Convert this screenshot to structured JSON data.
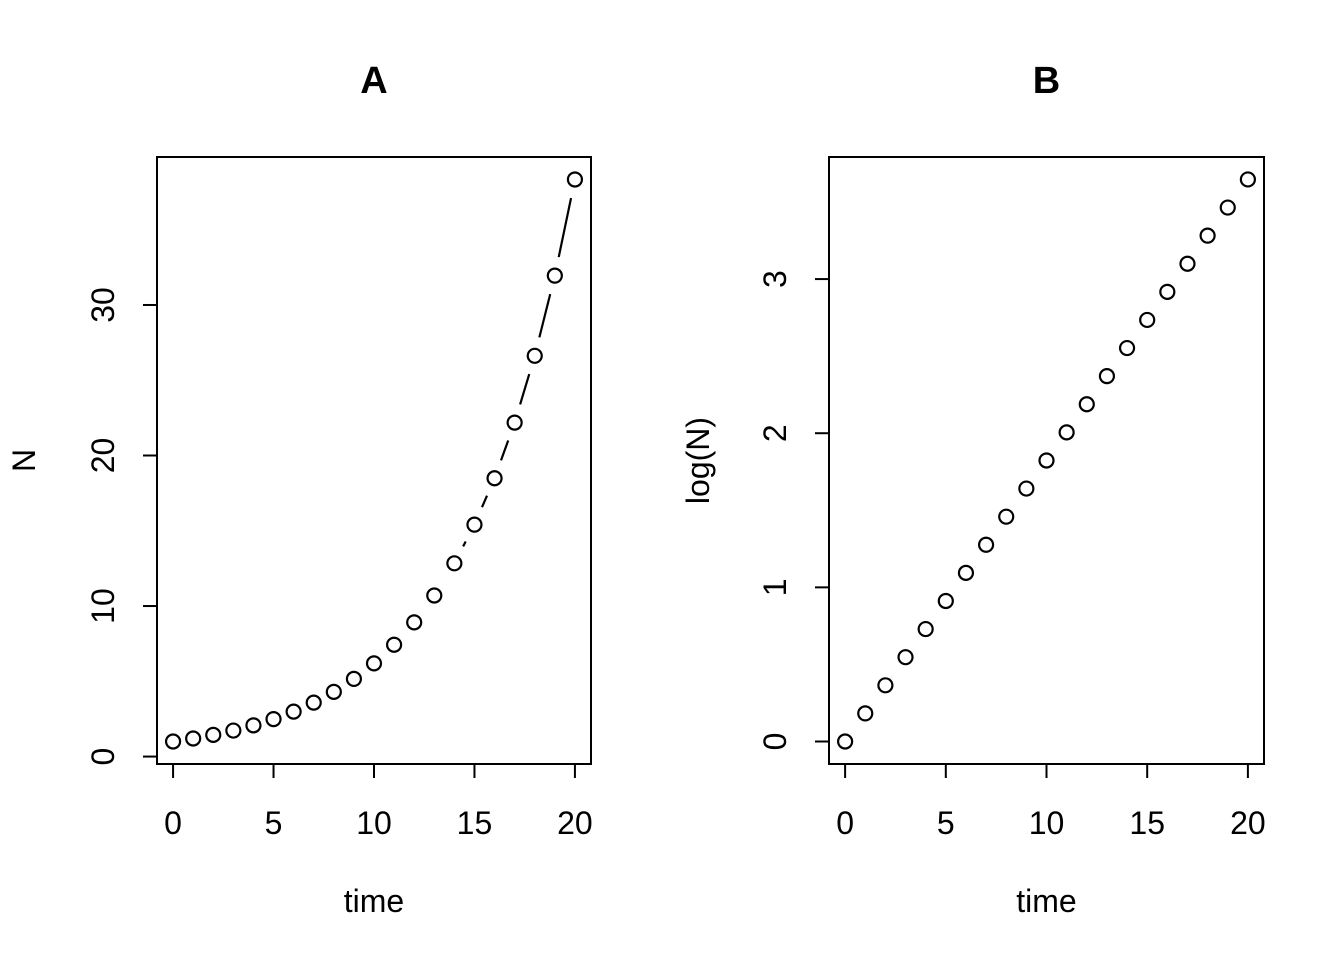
{
  "figure": {
    "background": "#ffffff",
    "stroke_color": "#000000",
    "marker": "open-circle",
    "panel_count": 2
  },
  "chart_data": [
    {
      "panel": "A",
      "type": "scatter",
      "title": "A",
      "xlabel": "time",
      "ylabel": "N",
      "marker": "open-circle",
      "connect": "segments",
      "grid": false,
      "legend": null,
      "x": [
        0,
        1,
        2,
        3,
        4,
        5,
        6,
        7,
        8,
        9,
        10,
        11,
        12,
        13,
        14,
        15,
        16,
        17,
        18,
        19,
        20
      ],
      "y": [
        1,
        1.2,
        1.44,
        1.728,
        2.0736,
        2.4883,
        2.986,
        3.5832,
        4.2998,
        5.1598,
        6.1917,
        7.4301,
        8.9161,
        10.6993,
        12.8392,
        15.407,
        18.4884,
        22.1861,
        26.6233,
        31.948,
        38.3376
      ],
      "xticks": [
        0,
        5,
        10,
        15,
        20
      ],
      "yticks": [
        0,
        10,
        20,
        30
      ],
      "xlim": [
        -0.8,
        20.8
      ],
      "ylim": [
        -0.494,
        39.831
      ]
    },
    {
      "panel": "B",
      "type": "scatter",
      "title": "B",
      "xlabel": "time",
      "ylabel": "log(N)",
      "marker": "open-circle",
      "connect": "none",
      "grid": false,
      "legend": null,
      "x": [
        0,
        1,
        2,
        3,
        4,
        5,
        6,
        7,
        8,
        9,
        10,
        11,
        12,
        13,
        14,
        15,
        16,
        17,
        18,
        19,
        20
      ],
      "y": [
        0,
        0.1823,
        0.3646,
        0.547,
        0.7293,
        0.9116,
        1.0939,
        1.2763,
        1.4586,
        1.6409,
        1.8232,
        2.0055,
        2.1879,
        2.3702,
        2.5525,
        2.7348,
        2.9171,
        3.0995,
        3.2818,
        3.4641,
        3.6464
      ],
      "xticks": [
        0,
        5,
        10,
        15,
        20
      ],
      "yticks": [
        0,
        1,
        2,
        3
      ],
      "xlim": [
        -0.8,
        20.8
      ],
      "ylim": [
        -0.146,
        3.792
      ]
    }
  ]
}
